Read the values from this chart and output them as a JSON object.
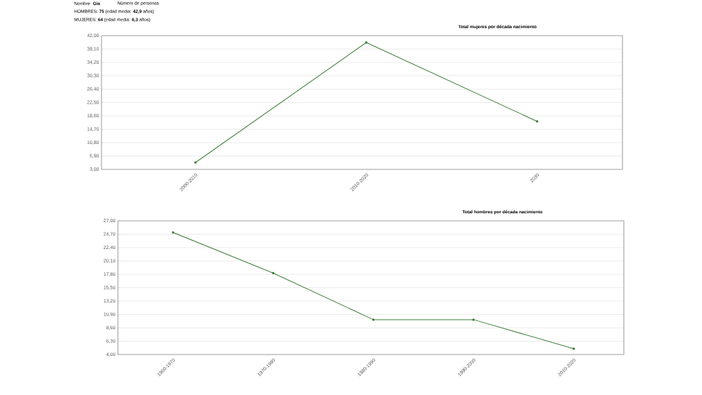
{
  "chart_data": [
    {
      "type": "line",
      "title": "Total mujeres por década nacimiento",
      "annotations": [
        "Nombre: **Gia**",
        "Número de personas",
        "HOMBRES: **75** (edad media: **42,9** años)",
        "MUJERES: **64** (edad media: **6,3** años)"
      ],
      "categories": [
        "2000-2010",
        "2010-2020",
        "2030"
      ],
      "series": [
        {
          "color": "#3a7d34",
          "values": [
            5,
            40,
            17
          ]
        }
      ],
      "ylim": [
        3,
        42
      ],
      "yticks": [
        {
          "value": 3,
          "label": "3,00"
        },
        {
          "value": 6.9,
          "label": "6,90"
        },
        {
          "value": 10.8,
          "label": "10,80"
        },
        {
          "value": 14.7,
          "label": "14,70"
        },
        {
          "value": 18.6,
          "label": "18,60"
        },
        {
          "value": 22.5,
          "label": "22,50"
        },
        {
          "value": 26.4,
          "label": "26,40"
        },
        {
          "value": 30.3,
          "label": "30,30"
        },
        {
          "value": 34.2,
          "label": "34,20"
        },
        {
          "value": 38.1,
          "label": "38,10"
        },
        {
          "value": 42,
          "label": "42,00"
        }
      ],
      "grid": "y",
      "marker": "circle"
    },
    {
      "type": "line",
      "title": "Total hombres por década nacimiento",
      "categories": [
        "1960-1970",
        "1970-1980",
        "1980-1990",
        "1990-2000",
        "2010-2020"
      ],
      "series": [
        {
          "color": "#3a7d34",
          "values": [
            25,
            18,
            10,
            10,
            5
          ]
        }
      ],
      "ylim": [
        4,
        27
      ],
      "yticks": [
        {
          "value": 4,
          "label": "4,00"
        },
        {
          "value": 6.3,
          "label": "6,30"
        },
        {
          "value": 8.6,
          "label": "8,60"
        },
        {
          "value": 10.9,
          "label": "10,90"
        },
        {
          "value": 13.2,
          "label": "13,20"
        },
        {
          "value": 15.5,
          "label": "15,50"
        },
        {
          "value": 17.8,
          "label": "17,80"
        },
        {
          "value": 20.1,
          "label": "20,10"
        },
        {
          "value": 22.4,
          "label": "22,40"
        },
        {
          "value": 24.7,
          "label": "24,70"
        },
        {
          "value": 27,
          "label": "27,00"
        }
      ],
      "grid": "y",
      "marker": "circle"
    }
  ]
}
